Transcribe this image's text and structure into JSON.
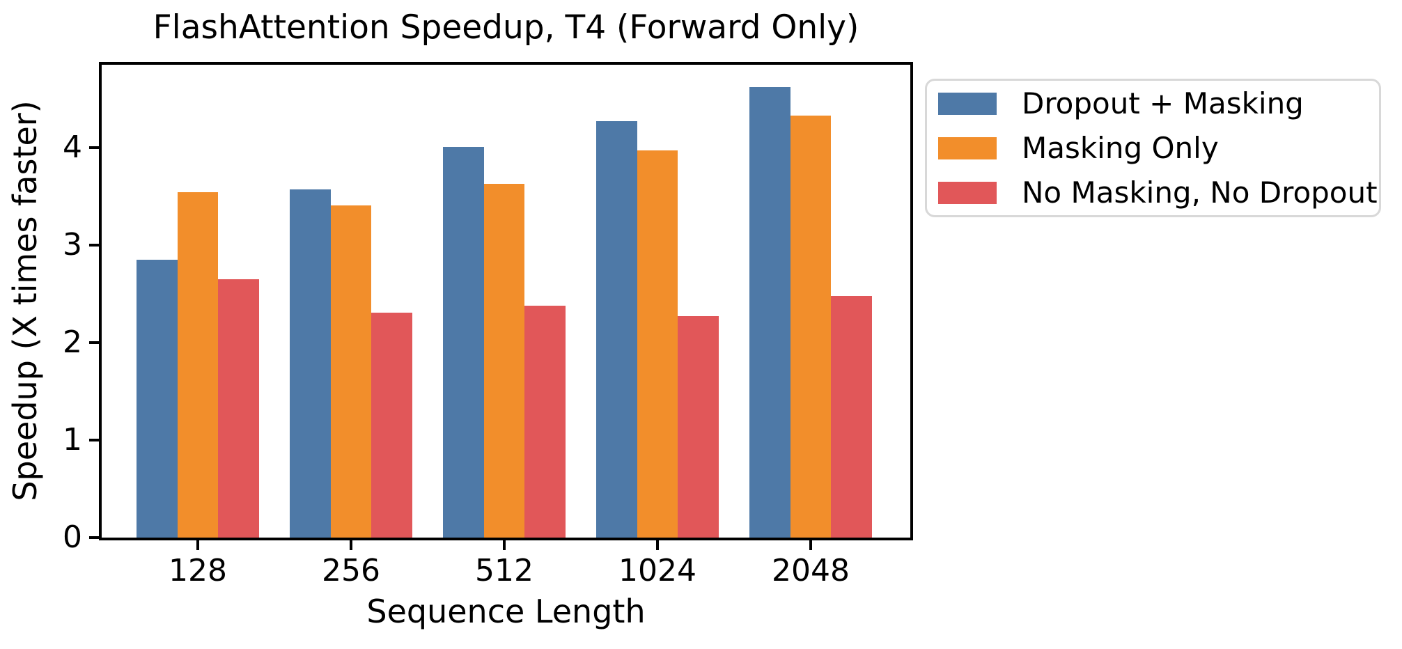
{
  "chart_data": {
    "type": "bar",
    "title": "FlashAttention Speedup, T4 (Forward Only)",
    "xlabel": "Sequence Length",
    "ylabel": "Speedup (X times faster)",
    "categories": [
      "128",
      "256",
      "512",
      "1024",
      "2048"
    ],
    "series": [
      {
        "name": "Dropout + Masking",
        "color": "#4e79a7",
        "values": [
          2.85,
          3.57,
          4.01,
          4.27,
          4.62
        ]
      },
      {
        "name": "Masking Only",
        "color": "#f28e2b",
        "values": [
          3.54,
          3.41,
          3.63,
          3.97,
          4.33
        ]
      },
      {
        "name": "No Masking, No Dropout",
        "color": "#e15759",
        "values": [
          2.65,
          2.31,
          2.38,
          2.27,
          2.48
        ]
      }
    ],
    "yticks": [
      0,
      1,
      2,
      3,
      4
    ],
    "ylim": [
      0,
      4.85
    ],
    "grid": false,
    "legend_position": "outside-right",
    "colors": {
      "spine": "#000000",
      "legend_border": "#d8d8d8",
      "background": "#ffffff"
    }
  }
}
